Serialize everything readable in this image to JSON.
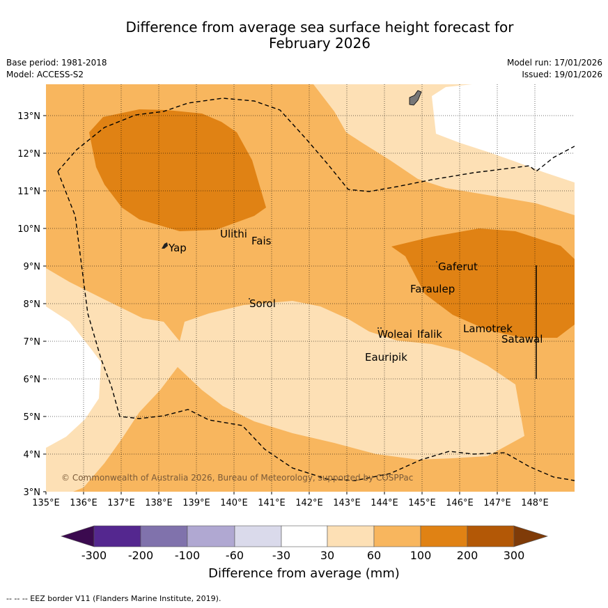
{
  "header": {
    "title_line1": "Difference from average sea surface height forecast for",
    "title_line2": "February 2026",
    "base_period": "Base period: 1981-2018",
    "model": "Model: ACCESS-S2",
    "model_run": "Model run: 17/01/2026",
    "issued": "Issued: 19/01/2026"
  },
  "map": {
    "copyright": "© Commonwealth of Australia 2026, Bureau of Meteorology, supported by COSPPac",
    "lon_labels": [
      "135°E",
      "136°E",
      "137°E",
      "138°E",
      "139°E",
      "140°E",
      "141°E",
      "142°E",
      "143°E",
      "144°E",
      "145°E",
      "146°E",
      "147°E",
      "148°E"
    ],
    "lat_labels": [
      "3°N",
      "4°N",
      "5°N",
      "6°N",
      "7°N",
      "8°N",
      "9°N",
      "10°N",
      "11°N",
      "12°N",
      "13°N"
    ],
    "places": {
      "yap": "Yap",
      "ulithi": "Ulithi",
      "fais": "Fais",
      "sorol": "Sorol",
      "gaferut": "Gaferut",
      "faraulep": "Faraulep",
      "woleai": "Woleai",
      "ifalik": "Ifalik",
      "lamotrek": "Lamotrek",
      "satawal": "Satawal",
      "eauripik": "Eauripik"
    }
  },
  "colorbar": {
    "title": "Difference from average (mm)",
    "ticks": [
      "-300",
      "-200",
      "-100",
      "-60",
      "-30",
      "30",
      "60",
      "100",
      "200",
      "300"
    ],
    "colors": {
      "below_min": "#3b0a4f",
      "neg300_200": "#54278f",
      "neg200_100": "#8072ac",
      "neg100_60": "#b0a8d2",
      "neg60_30": "#dadaeb",
      "neutral": "#ffffff",
      "pos30_60": "#fde0b5",
      "pos60_100": "#f8b65e",
      "pos100_200": "#e08214",
      "pos200_300": "#b35806",
      "above_max": "#7f3b08"
    }
  },
  "footnote": "-- -- -- EEZ border V11 (Flanders Marine Institute, 2019)."
}
